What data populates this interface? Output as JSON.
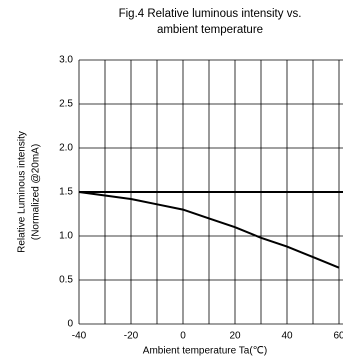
{
  "chart_data": {
    "type": "line",
    "title": [
      "Fig.4 Relative luminous intensity vs.",
      "ambient temperature"
    ],
    "y_label": [
      "Relative Luminous intensity",
      "(Normalized @20mA)"
    ],
    "x_label": "Ambient temperature Ta(℃)",
    "x": [
      -40,
      -30,
      -20,
      -10,
      0,
      10,
      20,
      30,
      40,
      50,
      60
    ],
    "series": [
      {
        "color": "#000000",
        "values": [
          1.5,
          1.46,
          1.42,
          1.36,
          1.3,
          1.2,
          1.1,
          0.98,
          0.88,
          0.76,
          0.64
        ]
      }
    ],
    "reference_y": 1.5,
    "xlim": [
      -40,
      60
    ],
    "ylim": [
      0,
      3
    ],
    "xticks": [
      -40,
      -20,
      0,
      20,
      40,
      60
    ],
    "minor_xticks": [
      -30,
      -10,
      10,
      30,
      50
    ],
    "yticks": [
      0,
      0.5,
      {
        "value": 1,
        "label": "1.0"
      },
      1.5,
      {
        "value": 2,
        "label": "2.0"
      },
      2.5,
      {
        "value": 3,
        "label": "3.0"
      }
    ],
    "grid": true
  }
}
